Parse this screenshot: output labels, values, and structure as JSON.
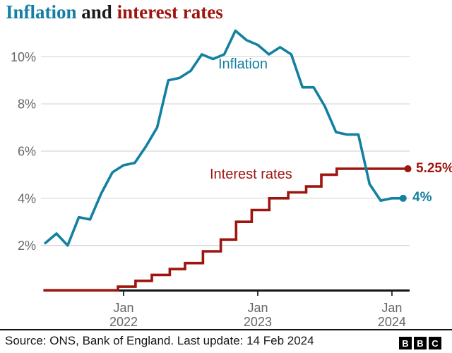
{
  "title": {
    "part1": "Inflation",
    "part2": "and",
    "part3": "interest rates"
  },
  "colors": {
    "teal": "#1380a1",
    "dark_red": "#9d150e",
    "title_and": "#1a1a1a",
    "axis_text": "#666666",
    "grid_line": "#d6d6d6",
    "axis_line": "#141414",
    "tick_mark": "#3a3a3a"
  },
  "chart_data": {
    "type": "line",
    "title": "Inflation and interest rates",
    "grid": "horizontal",
    "y_axis": {
      "unit": "%",
      "range": [
        0,
        11.5
      ],
      "ticks": [
        {
          "label": "2%",
          "value": 2
        },
        {
          "label": "4%",
          "value": 4
        },
        {
          "label": "6%",
          "value": 6
        },
        {
          "label": "8%",
          "value": 8
        },
        {
          "label": "10%",
          "value": 10
        }
      ]
    },
    "x_axis": {
      "ticks": [
        {
          "line1": "Jan",
          "line2": "2022",
          "month": "2022-01"
        },
        {
          "line1": "Jan",
          "line2": "2023",
          "month": "2023-01"
        },
        {
          "line1": "Jan",
          "line2": "2024",
          "month": "2024-01"
        }
      ]
    },
    "series": [
      {
        "name": "Inflation",
        "draw": "line",
        "color": "#1380a1",
        "unit": "%",
        "end_label": "4%",
        "points": [
          [
            "2021-05",
            2.1
          ],
          [
            "2021-06",
            2.5
          ],
          [
            "2021-07",
            2.0
          ],
          [
            "2021-08",
            3.2
          ],
          [
            "2021-09",
            3.1
          ],
          [
            "2021-10",
            4.2
          ],
          [
            "2021-11",
            5.1
          ],
          [
            "2021-12",
            5.4
          ],
          [
            "2022-01",
            5.5
          ],
          [
            "2022-02",
            6.2
          ],
          [
            "2022-03",
            7.0
          ],
          [
            "2022-04",
            9.0
          ],
          [
            "2022-05",
            9.1
          ],
          [
            "2022-06",
            9.4
          ],
          [
            "2022-07",
            10.1
          ],
          [
            "2022-08",
            9.9
          ],
          [
            "2022-09",
            10.1
          ],
          [
            "2022-10",
            11.1
          ],
          [
            "2022-11",
            10.7
          ],
          [
            "2022-12",
            10.5
          ],
          [
            "2023-01",
            10.1
          ],
          [
            "2023-02",
            10.4
          ],
          [
            "2023-03",
            10.1
          ],
          [
            "2023-04",
            8.7
          ],
          [
            "2023-05",
            8.7
          ],
          [
            "2023-06",
            7.9
          ],
          [
            "2023-07",
            6.8
          ],
          [
            "2023-08",
            6.7
          ],
          [
            "2023-09",
            6.7
          ],
          [
            "2023-10",
            4.6
          ],
          [
            "2023-11",
            3.9
          ],
          [
            "2023-12",
            4.0
          ],
          [
            "2024-01",
            4.0
          ]
        ]
      },
      {
        "name": "Interest rates",
        "draw": "step",
        "color": "#9d150e",
        "unit": "%",
        "end_label": "5.25%",
        "steps": [
          [
            "2021-05-26",
            0.1
          ],
          [
            "2021-12-16",
            0.25
          ],
          [
            "2022-02-03",
            0.5
          ],
          [
            "2022-03-17",
            0.75
          ],
          [
            "2022-05-05",
            1.0
          ],
          [
            "2022-06-16",
            1.25
          ],
          [
            "2022-08-04",
            1.75
          ],
          [
            "2022-09-22",
            2.25
          ],
          [
            "2022-11-03",
            3.0
          ],
          [
            "2022-12-15",
            3.5
          ],
          [
            "2023-02-02",
            4.0
          ],
          [
            "2023-03-23",
            4.25
          ],
          [
            "2023-05-11",
            4.5
          ],
          [
            "2023-06-22",
            5.0
          ],
          [
            "2023-08-03",
            5.25
          ]
        ],
        "end_date": "2024-02-14"
      }
    ]
  },
  "footer": {
    "source": "Source: ONS, Bank of England. Last update: 14 Feb 2024",
    "logo": [
      "B",
      "B",
      "C"
    ]
  }
}
